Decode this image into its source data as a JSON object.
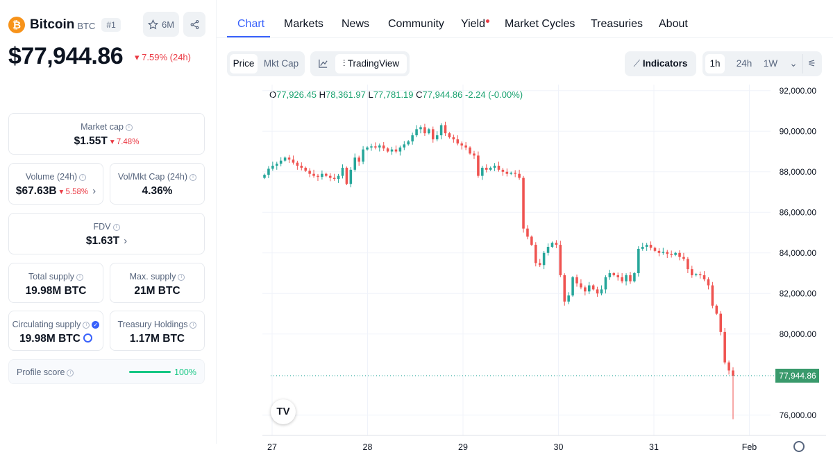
{
  "coin": {
    "name": "Bitcoin",
    "symbol": "BTC",
    "rank": "#1",
    "watchlist_count": "6M",
    "price": "$77,944.86",
    "price_change": "7.59% (24h)"
  },
  "stats": {
    "market_cap": {
      "label": "Market cap",
      "value": "$1.55T",
      "change": "7.48%"
    },
    "volume": {
      "label": "Volume (24h)",
      "value": "$67.63B",
      "change": "5.58%"
    },
    "vol_mkt": {
      "label": "Vol/Mkt Cap (24h)",
      "value": "4.36%"
    },
    "fdv": {
      "label": "FDV",
      "value": "$1.63T"
    },
    "total_supply": {
      "label": "Total supply",
      "value": "19.98M BTC"
    },
    "max_supply": {
      "label": "Max. supply",
      "value": "21M BTC"
    },
    "circulating_supply": {
      "label": "Circulating supply",
      "value": "19.98M BTC"
    },
    "treasury": {
      "label": "Treasury Holdings",
      "value": "1.17M BTC"
    },
    "profile_score": {
      "label": "Profile score",
      "value": "100%",
      "fill": 1.0
    }
  },
  "tabs": [
    {
      "label": "Chart",
      "active": true
    },
    {
      "label": "Markets"
    },
    {
      "label": "News"
    },
    {
      "label": "Community"
    },
    {
      "label": "Yield",
      "badge": true
    },
    {
      "label": "Market Cycles"
    },
    {
      "label": "Treasuries"
    },
    {
      "label": "About"
    }
  ],
  "toolbar": {
    "price_label": "Price",
    "mktcap_label": "Mkt Cap",
    "tradingview_label": "TradingView",
    "indicators_label": "Indicators",
    "ranges": [
      "1h",
      "24h",
      "1W"
    ],
    "selected_range": "1h"
  },
  "ohlc": {
    "o_label": "O",
    "o": "77,926.45",
    "h_label": "H",
    "h": "78,361.97",
    "l_label": "L",
    "l": "77,781.19",
    "c_label": "C",
    "c": "77,944.86",
    "change": "-2.24 (-0.00%)"
  },
  "colors": {
    "up": "#26a69a",
    "down": "#ef5350",
    "accent": "#3861fb",
    "price_tag": "#3a9a6c"
  },
  "chart_data": {
    "type": "candlestick",
    "title": "",
    "xlabel": "",
    "ylabel": "",
    "x_ticks": [
      "27",
      "28",
      "29",
      "30",
      "31",
      "Feb"
    ],
    "y_ticks": [
      "92,000.00",
      "90,000.00",
      "88,000.00",
      "86,000.00",
      "84,000.00",
      "82,000.00",
      "80,000.00",
      "76,000.00"
    ],
    "ylim": [
      75000,
      92300
    ],
    "x_range_days": [
      27,
      32
    ],
    "last_price_label": "77,944.86",
    "last_price": 77944.86,
    "grid": true,
    "closes": [
      87850,
      88150,
      88300,
      88400,
      88550,
      88700,
      88600,
      88450,
      88300,
      88200,
      88050,
      87900,
      87800,
      87750,
      87900,
      87800,
      87700,
      87650,
      87800,
      88200,
      87400,
      88100,
      88700,
      88500,
      89100,
      89200,
      89250,
      89200,
      89300,
      89150,
      89000,
      89100,
      89000,
      89200,
      89350,
      89500,
      89800,
      90100,
      90200,
      89900,
      90100,
      89600,
      89800,
      90300,
      89900,
      89700,
      89600,
      89400,
      89300,
      89200,
      88900,
      88800,
      87800,
      88200,
      88100,
      88200,
      88300,
      88100,
      88000,
      87900,
      87950,
      87900,
      87700,
      85200,
      84800,
      84400,
      83500,
      83400,
      84000,
      84300,
      84500,
      84400,
      82900,
      81600,
      81900,
      82800,
      82500,
      82300,
      82100,
      82400,
      82200,
      82000,
      82200,
      82800,
      83000,
      82900,
      82800,
      82600,
      82900,
      82600,
      83000,
      84200,
      84300,
      84400,
      84250,
      84100,
      84000,
      84050,
      83950,
      83900,
      84000,
      83800,
      83700,
      83200,
      82900,
      82950,
      82900,
      82700,
      82400,
      81400,
      81000,
      80100,
      78600,
      78200,
      77944.86
    ]
  }
}
